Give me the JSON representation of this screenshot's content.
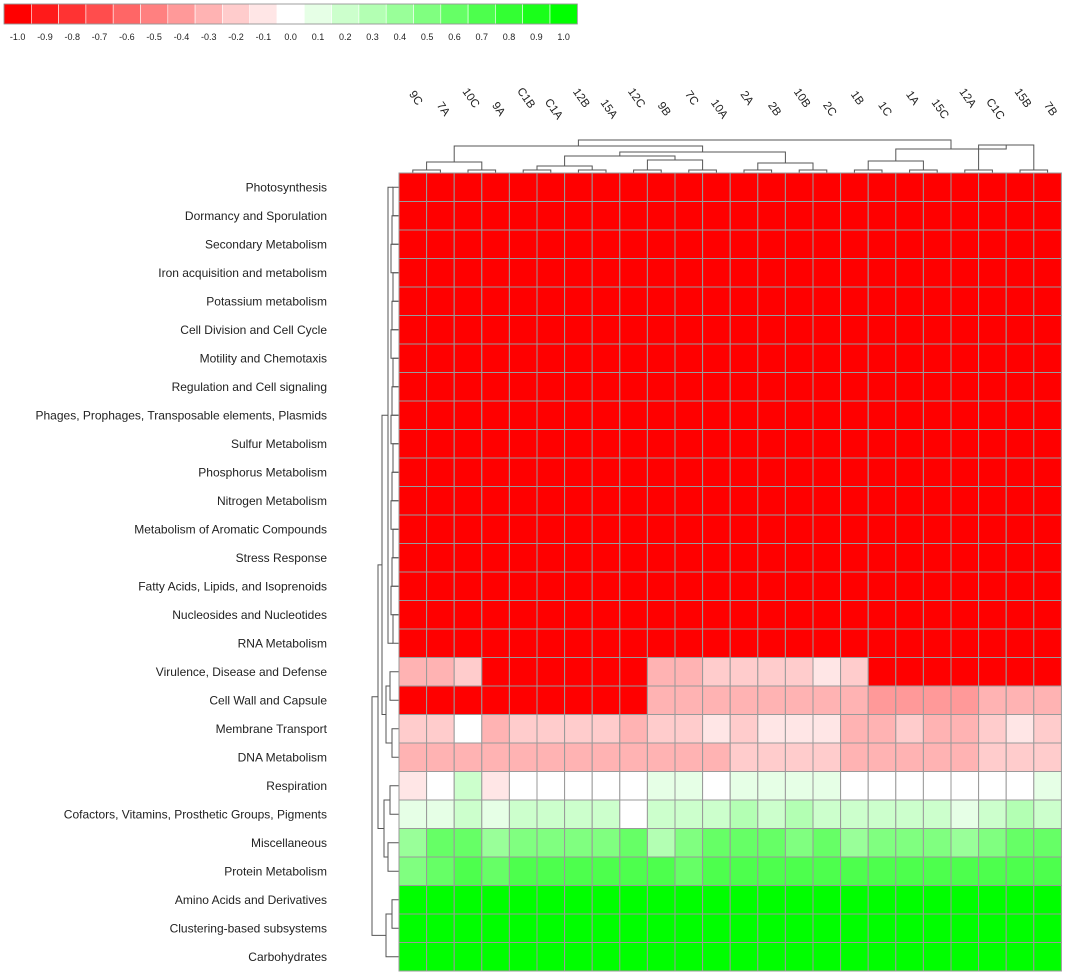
{
  "chart_data": {
    "type": "heatmap",
    "title": "",
    "xlabel": "",
    "ylabel": "",
    "columns": [
      "9C",
      "7A",
      "10C",
      "9A",
      "C1B",
      "C1A",
      "12B",
      "15A",
      "12C",
      "9B",
      "7C",
      "10A",
      "2A",
      "2B",
      "10B",
      "2C",
      "1B",
      "1C",
      "1A",
      "15C",
      "12A",
      "C1C",
      "15B",
      "7B"
    ],
    "rows": [
      "Photosynthesis",
      "Dormancy and Sporulation",
      "Secondary Metabolism",
      "Iron acquisition and metabolism",
      "Potassium metabolism",
      "Cell Division and Cell Cycle",
      "Motility and Chemotaxis",
      "Regulation and Cell signaling",
      "Phages, Prophages, Transposable elements, Plasmids",
      "Sulfur Metabolism",
      "Phosphorus Metabolism",
      "Nitrogen Metabolism",
      "Metabolism of Aromatic Compounds",
      "Stress Response",
      "Fatty Acids, Lipids, and Isoprenoids",
      "Nucleosides and Nucleotides",
      "RNA Metabolism",
      "Virulence, Disease and Defense",
      "Cell Wall and Capsule",
      "Membrane Transport",
      "DNA Metabolism",
      "Respiration",
      "Cofactors, Vitamins, Prosthetic Groups, Pigments",
      "Miscellaneous",
      "Protein Metabolism",
      "Amino Acids and Derivatives",
      "Clustering-based subsystems",
      "Carbohydrates"
    ],
    "values": [
      [
        -1,
        -1,
        -1,
        -1,
        -1,
        -1,
        -1,
        -1,
        -1,
        -1,
        -1,
        -1,
        -1,
        -1,
        -1,
        -1,
        -1,
        -1,
        -1,
        -1,
        -1,
        -1,
        -1,
        -1
      ],
      [
        -1,
        -1,
        -1,
        -1,
        -1,
        -1,
        -1,
        -1,
        -1,
        -1,
        -1,
        -1,
        -1,
        -1,
        -1,
        -1,
        -1,
        -1,
        -1,
        -1,
        -1,
        -1,
        -1,
        -1
      ],
      [
        -1,
        -1,
        -1,
        -1,
        -1,
        -1,
        -1,
        -1,
        -1,
        -1,
        -1,
        -1,
        -1,
        -1,
        -1,
        -1,
        -1,
        -1,
        -1,
        -1,
        -1,
        -1,
        -1,
        -1
      ],
      [
        -1,
        -1,
        -1,
        -1,
        -1,
        -1,
        -1,
        -1,
        -1,
        -1,
        -1,
        -1,
        -1,
        -1,
        -1,
        -1,
        -1,
        -1,
        -1,
        -1,
        -1,
        -1,
        -1,
        -1
      ],
      [
        -1,
        -1,
        -1,
        -1,
        -1,
        -1,
        -1,
        -1,
        -1,
        -1,
        -1,
        -1,
        -1,
        -1,
        -1,
        -1,
        -1,
        -1,
        -1,
        -1,
        -1,
        -1,
        -1,
        -1
      ],
      [
        -1,
        -1,
        -1,
        -1,
        -1,
        -1,
        -1,
        -1,
        -1,
        -1,
        -1,
        -1,
        -1,
        -1,
        -1,
        -1,
        -1,
        -1,
        -1,
        -1,
        -1,
        -1,
        -1,
        -1
      ],
      [
        -1,
        -1,
        -1,
        -1,
        -1,
        -1,
        -1,
        -1,
        -1,
        -1,
        -1,
        -1,
        -1,
        -1,
        -1,
        -1,
        -1,
        -1,
        -1,
        -1,
        -1,
        -1,
        -1,
        -1
      ],
      [
        -1,
        -1,
        -1,
        -1,
        -1,
        -1,
        -1,
        -1,
        -1,
        -1,
        -1,
        -1,
        -1,
        -1,
        -1,
        -1,
        -1,
        -1,
        -1,
        -1,
        -1,
        -1,
        -1,
        -1
      ],
      [
        -1,
        -1,
        -1,
        -1,
        -1,
        -1,
        -1,
        -1,
        -1,
        -1,
        -1,
        -1,
        -1,
        -1,
        -1,
        -1,
        -1,
        -1,
        -1,
        -1,
        -1,
        -1,
        -1,
        -1
      ],
      [
        -1,
        -1,
        -1,
        -1,
        -1,
        -1,
        -1,
        -1,
        -1,
        -1,
        -1,
        -1,
        -1,
        -1,
        -1,
        -1,
        -1,
        -1,
        -1,
        -1,
        -1,
        -1,
        -1,
        -1
      ],
      [
        -1,
        -1,
        -1,
        -1,
        -1,
        -1,
        -1,
        -1,
        -1,
        -1,
        -1,
        -1,
        -1,
        -1,
        -1,
        -1,
        -1,
        -1,
        -1,
        -1,
        -1,
        -1,
        -1,
        -1
      ],
      [
        -1,
        -1,
        -1,
        -1,
        -1,
        -1,
        -1,
        -1,
        -1,
        -1,
        -1,
        -1,
        -1,
        -1,
        -1,
        -1,
        -1,
        -1,
        -1,
        -1,
        -1,
        -1,
        -1,
        -1
      ],
      [
        -1,
        -1,
        -1,
        -1,
        -1,
        -1,
        -1,
        -1,
        -1,
        -1,
        -1,
        -1,
        -1,
        -1,
        -1,
        -1,
        -1,
        -1,
        -1,
        -1,
        -1,
        -1,
        -1,
        -1
      ],
      [
        -1,
        -1,
        -1,
        -1,
        -1,
        -1,
        -1,
        -1,
        -1,
        -1,
        -1,
        -1,
        -1,
        -1,
        -1,
        -1,
        -1,
        -1,
        -1,
        -1,
        -1,
        -1,
        -1,
        -1
      ],
      [
        -1,
        -1,
        -1,
        -1,
        -1,
        -1,
        -1,
        -1,
        -1,
        -1,
        -1,
        -1,
        -1,
        -1,
        -1,
        -1,
        -1,
        -1,
        -1,
        -1,
        -1,
        -1,
        -1,
        -1
      ],
      [
        -1,
        -1,
        -1,
        -1,
        -1,
        -1,
        -1,
        -1,
        -1,
        -1,
        -1,
        -1,
        -1,
        -1,
        -1,
        -1,
        -1,
        -1,
        -1,
        -1,
        -1,
        -1,
        -1,
        -1
      ],
      [
        -1,
        -1,
        -1,
        -1,
        -1,
        -1,
        -1,
        -1,
        -1,
        -1,
        -1,
        -1,
        -1,
        -1,
        -1,
        -1,
        -1,
        -1,
        -1,
        -1,
        -1,
        -1,
        -1,
        -1
      ],
      [
        -0.3,
        -0.3,
        -0.2,
        -1,
        -1,
        -1,
        -1,
        -1,
        -1,
        -0.3,
        -0.3,
        -0.2,
        -0.2,
        -0.2,
        -0.2,
        -0.1,
        -0.2,
        -1,
        -1,
        -1,
        -1,
        -1,
        -1,
        -1
      ],
      [
        -1,
        -1,
        -1,
        -1,
        -1,
        -1,
        -1,
        -1,
        -1,
        -0.3,
        -0.3,
        -0.3,
        -0.3,
        -0.3,
        -0.3,
        -0.3,
        -0.3,
        -0.4,
        -0.4,
        -0.4,
        -0.4,
        -0.3,
        -0.3,
        -0.3
      ],
      [
        -0.2,
        -0.2,
        0,
        -0.3,
        -0.2,
        -0.2,
        -0.2,
        -0.2,
        -0.3,
        -0.2,
        -0.2,
        -0.1,
        -0.2,
        -0.1,
        -0.1,
        -0.1,
        -0.3,
        -0.3,
        -0.2,
        -0.3,
        -0.3,
        -0.2,
        -0.1,
        -0.2
      ],
      [
        -0.3,
        -0.3,
        -0.3,
        -0.3,
        -0.3,
        -0.3,
        -0.3,
        -0.3,
        -0.3,
        -0.3,
        -0.3,
        -0.3,
        -0.2,
        -0.2,
        -0.2,
        -0.2,
        -0.3,
        -0.3,
        -0.3,
        -0.3,
        -0.3,
        -0.2,
        -0.2,
        -0.2
      ],
      [
        -0.1,
        0,
        0.2,
        -0.1,
        0,
        0,
        0,
        0,
        0,
        0.1,
        0.1,
        0,
        0.1,
        0.1,
        0.1,
        0.1,
        0,
        0,
        0,
        0,
        0,
        0,
        0,
        0.1
      ],
      [
        0.1,
        0.1,
        0.2,
        0.1,
        0.2,
        0.2,
        0.2,
        0.2,
        0,
        0.2,
        0.2,
        0.2,
        0.3,
        0.2,
        0.3,
        0.2,
        0.2,
        0.2,
        0.2,
        0.2,
        0.1,
        0.2,
        0.3,
        0.2
      ],
      [
        0.4,
        0.6,
        0.6,
        0.4,
        0.5,
        0.5,
        0.5,
        0.5,
        0.6,
        0.3,
        0.5,
        0.6,
        0.6,
        0.6,
        0.5,
        0.6,
        0.4,
        0.5,
        0.5,
        0.5,
        0.4,
        0.5,
        0.6,
        0.6
      ],
      [
        0.5,
        0.6,
        0.7,
        0.6,
        0.7,
        0.7,
        0.7,
        0.7,
        0.7,
        0.7,
        0.6,
        0.7,
        0.7,
        0.7,
        0.7,
        0.7,
        0.7,
        0.7,
        0.7,
        0.7,
        0.7,
        0.7,
        0.7,
        0.7
      ],
      [
        1,
        1,
        1,
        1,
        1,
        1,
        1,
        1,
        1,
        1,
        1,
        1,
        1,
        1,
        1,
        1,
        1,
        1,
        1,
        1,
        1,
        1,
        1,
        1
      ],
      [
        1,
        1,
        1,
        1,
        1,
        1,
        1,
        1,
        1,
        1,
        1,
        1,
        1,
        1,
        1,
        1,
        1,
        1,
        1,
        1,
        1,
        1,
        1,
        1
      ],
      [
        1,
        1,
        1,
        1,
        1,
        1,
        1,
        1,
        1,
        1,
        1,
        1,
        1,
        1,
        1,
        1,
        1,
        1,
        1,
        1,
        1,
        1,
        1,
        1
      ]
    ],
    "legend": {
      "placement": "top-left",
      "labels": [
        "-1.0",
        "-0.9",
        "-0.8",
        "-0.7",
        "-0.6",
        "-0.5",
        "-0.4",
        "-0.3",
        "-0.2",
        "-0.1",
        "0.0",
        "0.1",
        "0.2",
        "0.3",
        "0.4",
        "0.5",
        "0.6",
        "0.7",
        "0.8",
        "0.9",
        "1.0"
      ]
    },
    "color_scale": {
      "min": -1,
      "mid": 0,
      "max": 1,
      "low": "#ff0000",
      "mid_color": "#ffffff",
      "high": "#00ff00"
    },
    "dendrograms": {
      "rows": true,
      "columns": true
    },
    "grid": true
  }
}
